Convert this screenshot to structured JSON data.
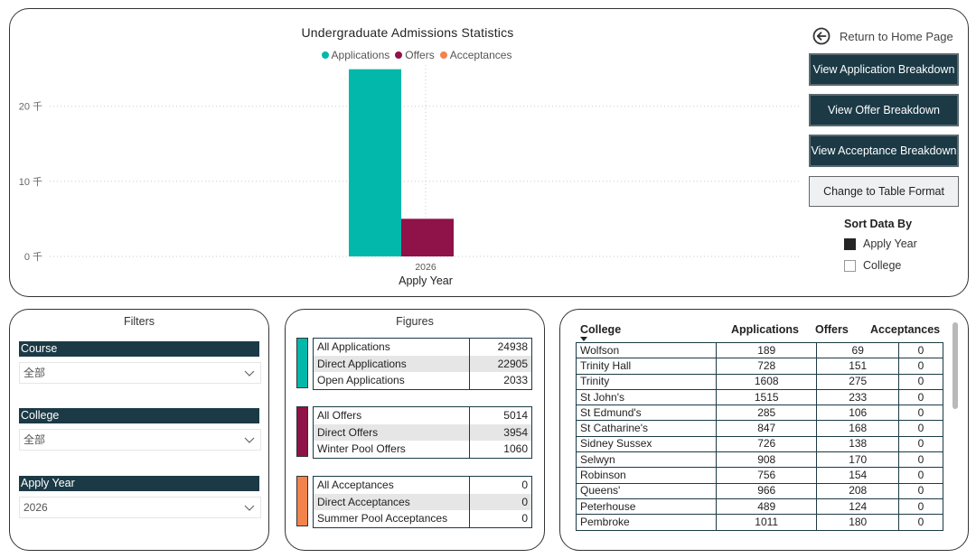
{
  "chart": {
    "title": "Undergraduate Admissions Statistics",
    "xlabel": "Apply Year",
    "legend": [
      {
        "label": "Applications",
        "color": "#01b8aa"
      },
      {
        "label": "Offers",
        "color": "#8f1248"
      },
      {
        "label": "Acceptances",
        "color": "#f2834c"
      }
    ]
  },
  "chart_data": {
    "type": "bar",
    "title": "Undergraduate Admissions Statistics",
    "xlabel": "Apply Year",
    "ylabel": "",
    "categories": [
      "2026"
    ],
    "series": [
      {
        "name": "Applications",
        "values": [
          24938
        ],
        "color": "#01b8aa"
      },
      {
        "name": "Offers",
        "values": [
          5014
        ],
        "color": "#8f1248"
      },
      {
        "name": "Acceptances",
        "values": [
          0
        ],
        "color": "#f2834c"
      }
    ],
    "yticks": [
      0,
      10000,
      20000
    ],
    "ytick_labels": [
      "0 千",
      "10 千",
      "20 千"
    ],
    "ylim": [
      0,
      25500
    ],
    "grid": true,
    "legend_position": "top-center"
  },
  "sidebar_right": {
    "return_label": "Return to Home Page",
    "btn_app": "View Application Breakdown",
    "btn_offer": "View Offer Breakdown",
    "btn_accept": "View Acceptance Breakdown",
    "btn_table": "Change to Table Format",
    "sort_title": "Sort Data By",
    "sort_apply_year": "Apply Year",
    "sort_college": "College"
  },
  "filters": {
    "title": "Filters",
    "course_label": "Course",
    "course_value": "全部",
    "college_label": "College",
    "college_value": "全部",
    "year_label": "Apply Year",
    "year_value": "2026"
  },
  "figures": {
    "title": "Figures",
    "applications": [
      {
        "label": "All Applications",
        "value": "24938"
      },
      {
        "label": "Direct Applications",
        "value": "22905"
      },
      {
        "label": "Open Applications",
        "value": "2033"
      }
    ],
    "offers": [
      {
        "label": "All Offers",
        "value": "5014"
      },
      {
        "label": "Direct Offers",
        "value": "3954"
      },
      {
        "label": "Winter Pool Offers",
        "value": "1060"
      }
    ],
    "acceptances": [
      {
        "label": "All Acceptances",
        "value": "0"
      },
      {
        "label": "Direct Acceptances",
        "value": "0"
      },
      {
        "label": "Summer Pool Acceptances",
        "value": "0"
      }
    ],
    "colors": {
      "applications": "#01b8aa",
      "offers": "#8f1248",
      "acceptances": "#f2834c"
    }
  },
  "college_table": {
    "headers": [
      "College",
      "Applications",
      "Offers",
      "Acceptances"
    ],
    "rows": [
      [
        "Wolfson",
        "189",
        "69",
        "0"
      ],
      [
        "Trinity Hall",
        "728",
        "151",
        "0"
      ],
      [
        "Trinity",
        "1608",
        "275",
        "0"
      ],
      [
        "St John's",
        "1515",
        "233",
        "0"
      ],
      [
        "St Edmund's",
        "285",
        "106",
        "0"
      ],
      [
        "St Catharine's",
        "847",
        "168",
        "0"
      ],
      [
        "Sidney Sussex",
        "726",
        "138",
        "0"
      ],
      [
        "Selwyn",
        "908",
        "170",
        "0"
      ],
      [
        "Robinson",
        "756",
        "154",
        "0"
      ],
      [
        "Queens'",
        "966",
        "208",
        "0"
      ],
      [
        "Peterhouse",
        "489",
        "124",
        "0"
      ],
      [
        "Pembroke",
        "1011",
        "180",
        "0"
      ]
    ]
  }
}
